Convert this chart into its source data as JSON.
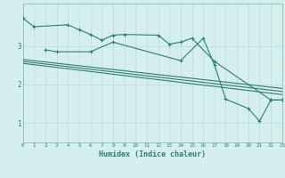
{
  "xlabel": "Humidex (Indice chaleur)",
  "x_values": [
    0,
    1,
    2,
    3,
    4,
    5,
    6,
    7,
    8,
    9,
    10,
    11,
    12,
    13,
    14,
    15,
    16,
    17,
    18,
    19,
    20,
    21,
    22,
    23
  ],
  "line1_y": [
    3.72,
    3.5,
    null,
    null,
    3.55,
    3.42,
    3.3,
    3.15,
    3.28,
    3.3,
    null,
    null,
    3.28,
    3.05,
    3.1,
    3.2,
    null,
    2.6,
    null,
    null,
    null,
    null,
    1.6,
    1.6
  ],
  "line2_y": [
    null,
    null,
    2.9,
    2.85,
    null,
    null,
    2.85,
    null,
    3.1,
    null,
    null,
    null,
    null,
    null,
    2.62,
    null,
    3.2,
    2.5,
    1.62,
    null,
    1.38,
    1.05,
    1.6,
    1.6
  ],
  "trend1_start": 2.65,
  "trend1_end": 1.9,
  "trend2_start": 2.6,
  "trend2_end": 1.82,
  "trend3_start": 2.55,
  "trend3_end": 1.74,
  "ylim": [
    0.5,
    4.1
  ],
  "xlim": [
    0,
    23
  ],
  "yticks": [
    1,
    2,
    3
  ],
  "bg_color": "#d5eeee",
  "line_color": "#2e7d6e",
  "grid_color": "#c0dede"
}
